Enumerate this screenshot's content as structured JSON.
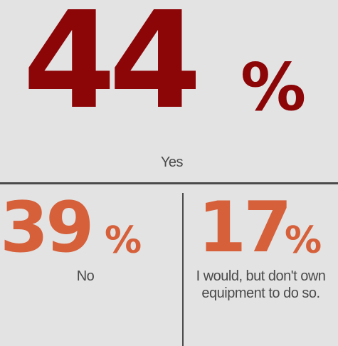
{
  "colors": {
    "background": "#e3e3e4",
    "primary": "#8c0608",
    "secondary": "#d6603a",
    "text": "#4a4a4a"
  },
  "chart_data": {
    "type": "table",
    "categories": [
      "Yes",
      "No",
      "I would, but don't own equipment to do so."
    ],
    "values": [
      44,
      39,
      17
    ],
    "unit": "%",
    "display": [
      {
        "value": "44",
        "unit": "%",
        "label": "Yes"
      },
      {
        "value": "39",
        "unit": "%",
        "label": "No"
      },
      {
        "value": "17",
        "unit": "%",
        "label": "I would, but don't own equipment to do so."
      }
    ]
  }
}
